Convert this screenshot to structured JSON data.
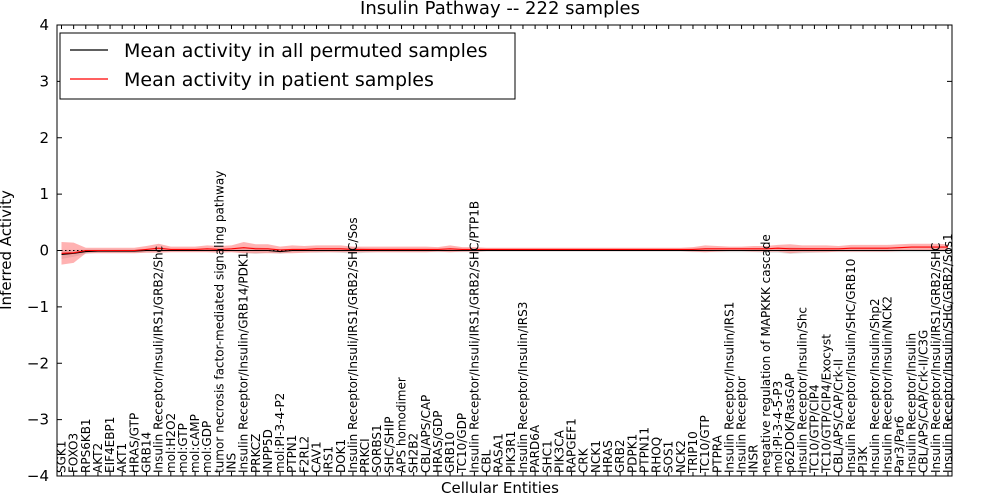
{
  "chart_data": {
    "type": "line",
    "title": "Insulin Pathway -- 222 samples",
    "xlabel": "Cellular Entities",
    "ylabel": "Inferred Activity",
    "ylim": [
      -4,
      4
    ],
    "yticks": [
      -4,
      -3,
      -2,
      -1,
      0,
      1,
      2,
      3,
      4
    ],
    "ytick_labels": [
      "−4",
      "−3",
      "−2",
      "−1",
      "0",
      "1",
      "2",
      "3",
      "4"
    ],
    "grid": false,
    "legend_position": "top-left",
    "categories": [
      "SGK1",
      "FOXO3",
      "RPS6KB1",
      "AKT2",
      "EIF4EBP1",
      "AKT1",
      "HRAS/GTP",
      "GRB14",
      "Insulin Receptor/Insuli/IRS1/GRB2/Shc",
      "mol:H2O2",
      "mol:GTP",
      "mol:cAMP",
      "mol:GDP",
      "tumor necrosis factor-mediated signaling pathway",
      "INS",
      "Insulin Receptor/Insulin/GRB14/PDK1",
      "PRKCZ",
      "INPP5D",
      "mol:PI-3-4-P2",
      "PTPN1",
      "F2RL2",
      "CAV1",
      "IRS1",
      "DOK1",
      "Insulin Receptor/Insuli/IRS1/GRB2/SHC/Sos",
      "PRKCI",
      "SORBS1",
      "SHC/SHIP",
      "APS homodimer",
      "SH2B2",
      "CBL/APS/CAP",
      "HRAS/GDP",
      "GRB10",
      "TC10/GDP",
      "Insulin Receptor/Insuli/IRS1/GRB2/SHC/PTP1B",
      "CBL",
      "RASA1",
      "PIK3R1",
      "Insulin Receptor/Insulin/IRS3",
      "PARD6A",
      "SHC1",
      "PIK3CA",
      "RAPGEF1",
      "CRK",
      "NCK1",
      "HRAS",
      "GRB2",
      "PDPK1",
      "PTPN11",
      "RHOQ",
      "SOS1",
      "NCK2",
      "TRIP10",
      "TC10/GTP",
      "PTPRA",
      "Insulin Receptor/Insulin/IRS1",
      "Insulin Receptor",
      "INSR",
      "negative regulation of MAPKKK cascade",
      "mol:PI-3-4-5-P3",
      "p62DOK/RasGAP",
      "Insulin Receptor/Insulin/Shc",
      "TC10/GTP/CIP4",
      "TC10/GTP/CIP4/Exocyst",
      "CBL/APS/CAP/Crk-II",
      "Insulin Receptor/Insulin/SHC/GRB10",
      "PI3K",
      "Insulin Receptor/Insulin/Shp2",
      "Insulin Receptor/Insulin/NCK2",
      "Par3/Par6",
      "Insulin Receptor/Insulin",
      "CBL/APS/CAP/Crk-II/C3G",
      "Insulin Receptor/Insuli/IRS1/GRB2/SHC",
      "Insulin Receptor/Insulin/SHC/GRB2/Sos1"
    ],
    "series": [
      {
        "name": "Mean activity in all permuted samples",
        "color": "#000000",
        "values": [
          -0.07,
          -0.05,
          -0.02,
          -0.01,
          -0.01,
          -0.01,
          -0.01,
          0.0,
          0.0,
          0.0,
          0.0,
          0.0,
          0.0,
          0.0,
          0.0,
          0.0,
          0.0,
          0.0,
          -0.02,
          0.0,
          0.0,
          0.0,
          0.0,
          0.0,
          0.0,
          0.0,
          0.0,
          0.0,
          0.0,
          0.0,
          0.0,
          0.0,
          0.0,
          0.0,
          0.0,
          0.0,
          0.0,
          0.0,
          0.0,
          0.0,
          0.0,
          0.0,
          0.0,
          0.0,
          0.0,
          0.0,
          0.0,
          0.0,
          0.0,
          0.0,
          0.0,
          0.0,
          0.0,
          0.0,
          0.0,
          0.0,
          0.0,
          0.0,
          0.0,
          0.0,
          0.0,
          0.0,
          0.0,
          0.0,
          0.0,
          0.0,
          0.0,
          0.0,
          0.0,
          0.0,
          0.0,
          0.0,
          0.0,
          0.0
        ],
        "band": [
          0.08,
          0.06,
          0.04,
          0.03,
          0.03,
          0.03,
          0.03,
          0.03,
          0.03,
          0.02,
          0.02,
          0.02,
          0.02,
          0.02,
          0.02,
          0.04,
          0.06,
          0.04,
          0.04,
          0.03,
          0.03,
          0.04,
          0.03,
          0.04,
          0.06,
          0.04,
          0.03,
          0.03,
          0.03,
          0.03,
          0.03,
          0.03,
          0.03,
          0.03,
          0.03,
          0.02,
          0.02,
          0.02,
          0.02,
          0.02,
          0.02,
          0.02,
          0.02,
          0.02,
          0.02,
          0.02,
          0.02,
          0.02,
          0.02,
          0.02,
          0.02,
          0.02,
          0.03,
          0.03,
          0.03,
          0.03,
          0.03,
          0.03,
          0.04,
          0.04,
          0.06,
          0.05,
          0.04,
          0.03,
          0.03,
          0.03,
          0.03,
          0.03,
          0.03,
          0.03,
          0.03,
          0.03,
          0.03,
          0.03
        ]
      },
      {
        "name": "Mean activity in patient samples",
        "color": "#ff0000",
        "values": [
          -0.05,
          -0.04,
          0.0,
          0.0,
          0.0,
          0.0,
          0.0,
          0.02,
          0.04,
          0.02,
          0.02,
          0.02,
          0.03,
          0.02,
          0.03,
          0.05,
          0.03,
          0.03,
          0.01,
          0.02,
          0.02,
          0.03,
          0.03,
          0.03,
          0.02,
          0.02,
          0.02,
          0.02,
          0.02,
          0.02,
          0.02,
          0.02,
          0.03,
          0.02,
          0.02,
          0.02,
          0.02,
          0.02,
          0.02,
          0.02,
          0.02,
          0.02,
          0.02,
          0.02,
          0.02,
          0.02,
          0.02,
          0.02,
          0.02,
          0.02,
          0.02,
          0.02,
          0.02,
          0.03,
          0.03,
          0.03,
          0.03,
          0.03,
          0.03,
          0.04,
          0.03,
          0.03,
          0.03,
          0.03,
          0.03,
          0.04,
          0.04,
          0.04,
          0.04,
          0.05,
          0.06,
          0.06,
          0.06,
          0.06
        ],
        "band": [
          0.2,
          0.18,
          0.05,
          0.05,
          0.05,
          0.05,
          0.05,
          0.06,
          0.08,
          0.05,
          0.05,
          0.05,
          0.06,
          0.06,
          0.06,
          0.1,
          0.08,
          0.08,
          0.06,
          0.07,
          0.06,
          0.06,
          0.06,
          0.06,
          0.05,
          0.05,
          0.05,
          0.05,
          0.05,
          0.05,
          0.05,
          0.04,
          0.06,
          0.04,
          0.04,
          0.03,
          0.03,
          0.03,
          0.03,
          0.03,
          0.03,
          0.03,
          0.03,
          0.03,
          0.03,
          0.03,
          0.03,
          0.03,
          0.03,
          0.03,
          0.03,
          0.03,
          0.04,
          0.06,
          0.05,
          0.04,
          0.04,
          0.05,
          0.05,
          0.06,
          0.08,
          0.06,
          0.06,
          0.06,
          0.05,
          0.06,
          0.06,
          0.06,
          0.06,
          0.06,
          0.06,
          0.06,
          0.06,
          0.05
        ]
      }
    ],
    "reference_line": {
      "y": 0.0,
      "style": "dotted",
      "color": "#000000"
    }
  }
}
